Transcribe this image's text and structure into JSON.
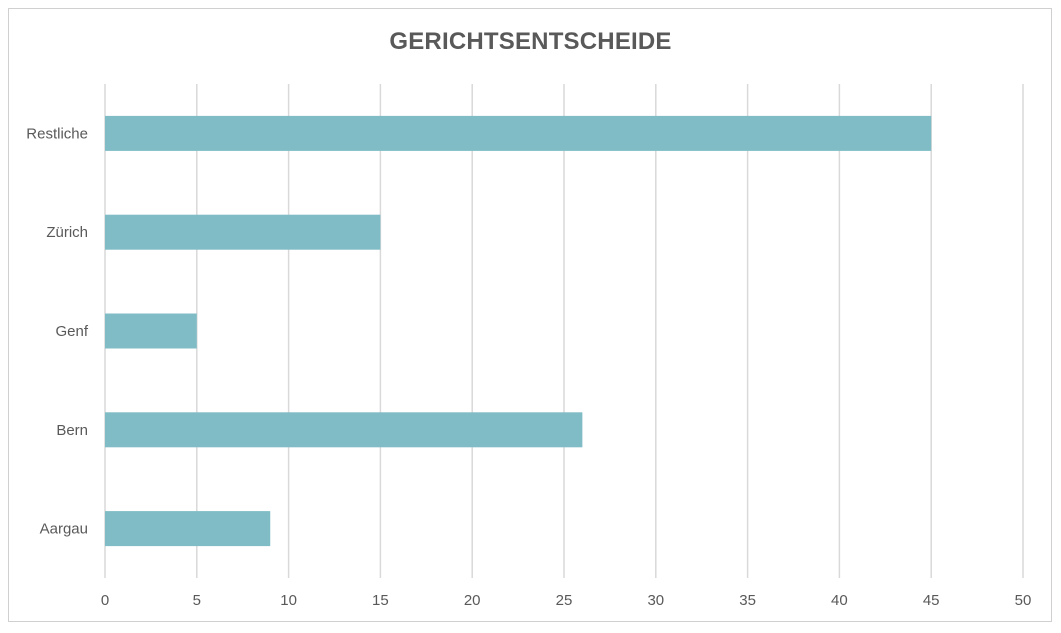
{
  "chart_data": {
    "type": "bar",
    "orientation": "horizontal",
    "title": "GERICHTSENTSCHEIDE",
    "categories": [
      "Restliche",
      "Zürich",
      "Genf",
      "Bern",
      "Aargau"
    ],
    "values": [
      45,
      15,
      5,
      26,
      9
    ],
    "xlim": [
      0,
      50
    ],
    "x_ticks": [
      0,
      5,
      10,
      15,
      20,
      25,
      30,
      35,
      40,
      45,
      50
    ],
    "xlabel": "",
    "ylabel": "",
    "grid": "vertical",
    "legend": "none",
    "bar_color": "#80BCC5",
    "grid_color": "#D9D9D9"
  }
}
